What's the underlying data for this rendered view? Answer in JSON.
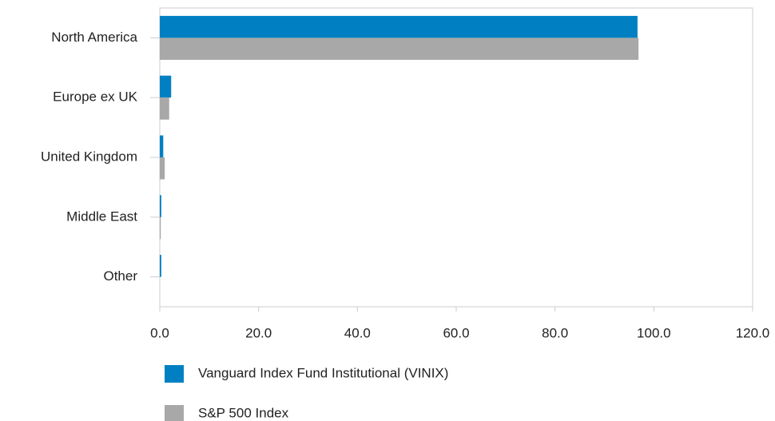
{
  "chart_data": {
    "type": "hbar",
    "categories": [
      "North America",
      "Europe ex UK",
      "United Kingdom",
      "Middle East",
      "Other"
    ],
    "series": [
      {
        "name": "Vanguard Index Fund Institutional (VINIX)",
        "color": "#0080c3",
        "values": [
          96.7,
          2.3,
          0.7,
          0.3,
          0.3
        ]
      },
      {
        "name": "S&P 500 Index",
        "color": "#a8a8a8",
        "values": [
          96.9,
          1.9,
          1.0,
          0.2,
          0.0
        ]
      }
    ],
    "xlim": [
      0,
      120
    ],
    "xticks": [
      {
        "value": 0,
        "label": "0.0"
      },
      {
        "value": 20,
        "label": "20.0"
      },
      {
        "value": 40,
        "label": "40.0"
      },
      {
        "value": 60,
        "label": "60.0"
      },
      {
        "value": 80,
        "label": "80.0"
      },
      {
        "value": 100,
        "label": "100.0"
      },
      {
        "value": 120,
        "label": "120.0"
      }
    ],
    "legend": "bottom"
  }
}
